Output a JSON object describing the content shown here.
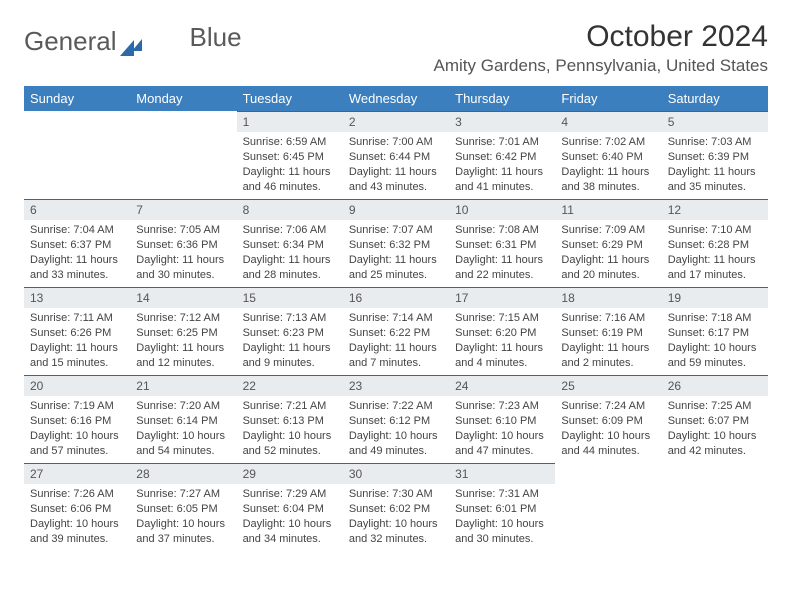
{
  "logo": {
    "text1": "General",
    "text2": "Blue"
  },
  "title": "October 2024",
  "location": "Amity Gardens, Pennsylvania, United States",
  "colors": {
    "header_bg": "#3b7fbf",
    "header_text": "#ffffff",
    "daynum_bg": "#e8ecef",
    "daynum_border": "#2b6aa8",
    "body_text": "#444444"
  },
  "weekdays": [
    "Sunday",
    "Monday",
    "Tuesday",
    "Wednesday",
    "Thursday",
    "Friday",
    "Saturday"
  ],
  "leading_blanks": 2,
  "trailing_blanks": 2,
  "days": [
    {
      "n": "1",
      "sunrise": "Sunrise: 6:59 AM",
      "sunset": "Sunset: 6:45 PM",
      "daylight": "Daylight: 11 hours and 46 minutes."
    },
    {
      "n": "2",
      "sunrise": "Sunrise: 7:00 AM",
      "sunset": "Sunset: 6:44 PM",
      "daylight": "Daylight: 11 hours and 43 minutes."
    },
    {
      "n": "3",
      "sunrise": "Sunrise: 7:01 AM",
      "sunset": "Sunset: 6:42 PM",
      "daylight": "Daylight: 11 hours and 41 minutes."
    },
    {
      "n": "4",
      "sunrise": "Sunrise: 7:02 AM",
      "sunset": "Sunset: 6:40 PM",
      "daylight": "Daylight: 11 hours and 38 minutes."
    },
    {
      "n": "5",
      "sunrise": "Sunrise: 7:03 AM",
      "sunset": "Sunset: 6:39 PM",
      "daylight": "Daylight: 11 hours and 35 minutes."
    },
    {
      "n": "6",
      "sunrise": "Sunrise: 7:04 AM",
      "sunset": "Sunset: 6:37 PM",
      "daylight": "Daylight: 11 hours and 33 minutes."
    },
    {
      "n": "7",
      "sunrise": "Sunrise: 7:05 AM",
      "sunset": "Sunset: 6:36 PM",
      "daylight": "Daylight: 11 hours and 30 minutes."
    },
    {
      "n": "8",
      "sunrise": "Sunrise: 7:06 AM",
      "sunset": "Sunset: 6:34 PM",
      "daylight": "Daylight: 11 hours and 28 minutes."
    },
    {
      "n": "9",
      "sunrise": "Sunrise: 7:07 AM",
      "sunset": "Sunset: 6:32 PM",
      "daylight": "Daylight: 11 hours and 25 minutes."
    },
    {
      "n": "10",
      "sunrise": "Sunrise: 7:08 AM",
      "sunset": "Sunset: 6:31 PM",
      "daylight": "Daylight: 11 hours and 22 minutes."
    },
    {
      "n": "11",
      "sunrise": "Sunrise: 7:09 AM",
      "sunset": "Sunset: 6:29 PM",
      "daylight": "Daylight: 11 hours and 20 minutes."
    },
    {
      "n": "12",
      "sunrise": "Sunrise: 7:10 AM",
      "sunset": "Sunset: 6:28 PM",
      "daylight": "Daylight: 11 hours and 17 minutes."
    },
    {
      "n": "13",
      "sunrise": "Sunrise: 7:11 AM",
      "sunset": "Sunset: 6:26 PM",
      "daylight": "Daylight: 11 hours and 15 minutes."
    },
    {
      "n": "14",
      "sunrise": "Sunrise: 7:12 AM",
      "sunset": "Sunset: 6:25 PM",
      "daylight": "Daylight: 11 hours and 12 minutes."
    },
    {
      "n": "15",
      "sunrise": "Sunrise: 7:13 AM",
      "sunset": "Sunset: 6:23 PM",
      "daylight": "Daylight: 11 hours and 9 minutes."
    },
    {
      "n": "16",
      "sunrise": "Sunrise: 7:14 AM",
      "sunset": "Sunset: 6:22 PM",
      "daylight": "Daylight: 11 hours and 7 minutes."
    },
    {
      "n": "17",
      "sunrise": "Sunrise: 7:15 AM",
      "sunset": "Sunset: 6:20 PM",
      "daylight": "Daylight: 11 hours and 4 minutes."
    },
    {
      "n": "18",
      "sunrise": "Sunrise: 7:16 AM",
      "sunset": "Sunset: 6:19 PM",
      "daylight": "Daylight: 11 hours and 2 minutes."
    },
    {
      "n": "19",
      "sunrise": "Sunrise: 7:18 AM",
      "sunset": "Sunset: 6:17 PM",
      "daylight": "Daylight: 10 hours and 59 minutes."
    },
    {
      "n": "20",
      "sunrise": "Sunrise: 7:19 AM",
      "sunset": "Sunset: 6:16 PM",
      "daylight": "Daylight: 10 hours and 57 minutes."
    },
    {
      "n": "21",
      "sunrise": "Sunrise: 7:20 AM",
      "sunset": "Sunset: 6:14 PM",
      "daylight": "Daylight: 10 hours and 54 minutes."
    },
    {
      "n": "22",
      "sunrise": "Sunrise: 7:21 AM",
      "sunset": "Sunset: 6:13 PM",
      "daylight": "Daylight: 10 hours and 52 minutes."
    },
    {
      "n": "23",
      "sunrise": "Sunrise: 7:22 AM",
      "sunset": "Sunset: 6:12 PM",
      "daylight": "Daylight: 10 hours and 49 minutes."
    },
    {
      "n": "24",
      "sunrise": "Sunrise: 7:23 AM",
      "sunset": "Sunset: 6:10 PM",
      "daylight": "Daylight: 10 hours and 47 minutes."
    },
    {
      "n": "25",
      "sunrise": "Sunrise: 7:24 AM",
      "sunset": "Sunset: 6:09 PM",
      "daylight": "Daylight: 10 hours and 44 minutes."
    },
    {
      "n": "26",
      "sunrise": "Sunrise: 7:25 AM",
      "sunset": "Sunset: 6:07 PM",
      "daylight": "Daylight: 10 hours and 42 minutes."
    },
    {
      "n": "27",
      "sunrise": "Sunrise: 7:26 AM",
      "sunset": "Sunset: 6:06 PM",
      "daylight": "Daylight: 10 hours and 39 minutes."
    },
    {
      "n": "28",
      "sunrise": "Sunrise: 7:27 AM",
      "sunset": "Sunset: 6:05 PM",
      "daylight": "Daylight: 10 hours and 37 minutes."
    },
    {
      "n": "29",
      "sunrise": "Sunrise: 7:29 AM",
      "sunset": "Sunset: 6:04 PM",
      "daylight": "Daylight: 10 hours and 34 minutes."
    },
    {
      "n": "30",
      "sunrise": "Sunrise: 7:30 AM",
      "sunset": "Sunset: 6:02 PM",
      "daylight": "Daylight: 10 hours and 32 minutes."
    },
    {
      "n": "31",
      "sunrise": "Sunrise: 7:31 AM",
      "sunset": "Sunset: 6:01 PM",
      "daylight": "Daylight: 10 hours and 30 minutes."
    }
  ]
}
